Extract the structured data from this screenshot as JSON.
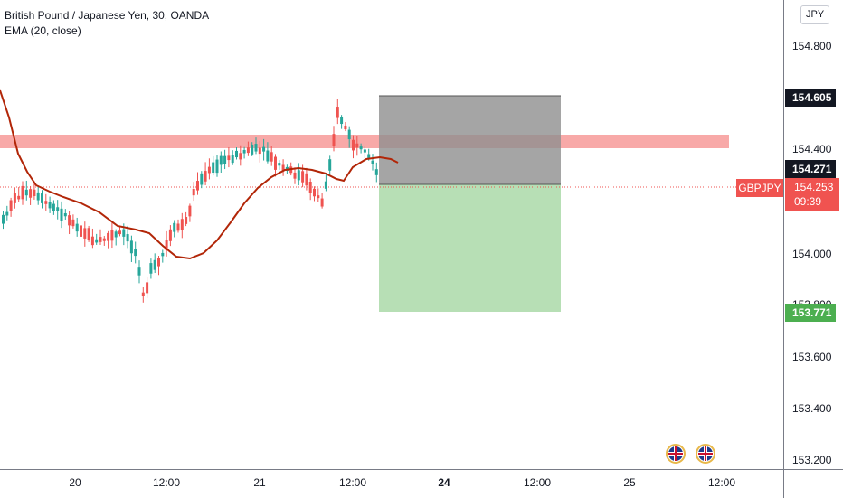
{
  "legend": {
    "title": "British Pound / Japanese Yen, 30, OANDA",
    "indicator": "EMA (20, close)"
  },
  "currency_button": "JPY",
  "price_axis": {
    "ticks": [
      "154.800",
      "154.400",
      "154.000",
      "153.800",
      "153.600",
      "153.400",
      "153.200"
    ]
  },
  "badges": {
    "target": "154.605",
    "entry": "154.271",
    "current_price": "154.253",
    "countdown": "09:39",
    "stop": "153.771"
  },
  "symbol_label": "GBPJPY",
  "time_axis": {
    "labels": [
      "20",
      "12:00",
      "21",
      "12:00",
      "24",
      "12:00",
      "25",
      "12:00"
    ],
    "bold": [
      "24"
    ]
  },
  "colors": {
    "bull": "#26a69a",
    "bear": "#ef5350",
    "ema": "#b22608",
    "resistance_zone": "#f7a09e",
    "target_zone": "#9e9e9e",
    "stop_zone": "#b7dfb5",
    "badge_dark": "#131722",
    "badge_green": "#4caf50"
  },
  "icons": [
    "uk-flag-event-icon",
    "uk-flag-event-icon"
  ]
}
